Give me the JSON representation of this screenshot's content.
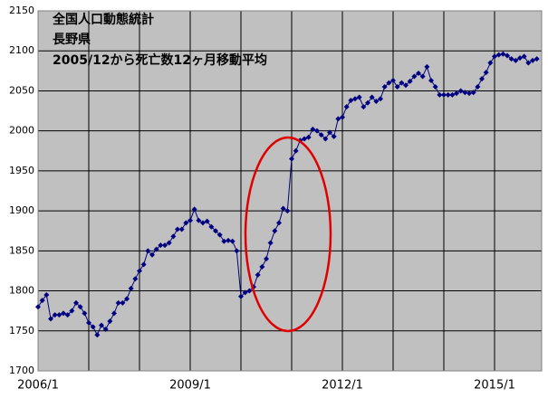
{
  "chart_data": {
    "type": "line",
    "title_lines": [
      "全国人口動態統計",
      "長野県",
      "2005/12から死亡数12ヶ月移動平均"
    ],
    "categories": [
      "2006/1",
      null,
      null,
      null,
      null,
      null,
      null,
      null,
      null,
      null,
      null,
      null,
      null,
      null,
      null,
      null,
      null,
      null,
      null,
      null,
      null,
      null,
      null,
      null,
      null,
      null,
      null,
      null,
      null,
      null,
      null,
      null,
      null,
      null,
      null,
      null,
      "2009/1",
      null,
      null,
      null,
      null,
      null,
      null,
      null,
      null,
      null,
      null,
      null,
      null,
      null,
      null,
      null,
      null,
      null,
      null,
      null,
      null,
      null,
      null,
      null,
      null,
      null,
      null,
      null,
      null,
      null,
      null,
      null,
      null,
      null,
      null,
      null,
      "2012/1",
      null,
      null,
      null,
      null,
      null,
      null,
      null,
      null,
      null,
      null,
      null,
      null,
      null,
      null,
      null,
      null,
      null,
      null,
      null,
      null,
      null,
      null,
      null,
      null,
      null,
      null,
      null,
      null,
      null,
      null,
      null,
      null,
      null,
      null,
      null,
      "2015/1",
      null,
      null,
      null,
      null,
      null,
      null,
      null,
      null,
      null,
      null
    ],
    "series": [
      {
        "color": "#000080",
        "values": [
          1780,
          1788,
          1795,
          1765,
          1770,
          1770,
          1772,
          1770,
          1775,
          1785,
          1780,
          1772,
          1760,
          1755,
          1745,
          1757,
          1752,
          1762,
          1772,
          1785,
          1785,
          1790,
          1803,
          1815,
          1825,
          1833,
          1850,
          1845,
          1852,
          1857,
          1857,
          1860,
          1868,
          1877,
          1877,
          1885,
          1888,
          1902,
          1888,
          1885,
          1887,
          1880,
          1875,
          1870,
          1862,
          1863,
          1862,
          1850,
          1793,
          1798,
          1800,
          1805,
          1820,
          1830,
          1840,
          1860,
          1875,
          1885,
          1903,
          1900,
          1965,
          1975,
          1988,
          1990,
          1992,
          2002,
          2000,
          1995,
          1990,
          1998,
          1993,
          2015,
          2017,
          2030,
          2038,
          2040,
          2042,
          2030,
          2035,
          2042,
          2037,
          2040,
          2055,
          2060,
          2063,
          2055,
          2060,
          2057,
          2062,
          2068,
          2072,
          2068,
          2080,
          2063,
          2055,
          2045,
          2045,
          2045,
          2045,
          2047,
          2050,
          2048,
          2047,
          2048,
          2055,
          2065,
          2073,
          2085,
          2093,
          2095,
          2096,
          2094,
          2090,
          2088,
          2091,
          2093,
          2085,
          2088,
          2090
        ]
      }
    ],
    "ylim": [
      1700,
      2150
    ],
    "yticks": [
      1700,
      1750,
      1800,
      1850,
      1900,
      1950,
      2000,
      2050,
      2100,
      2150
    ],
    "grid": true
  }
}
